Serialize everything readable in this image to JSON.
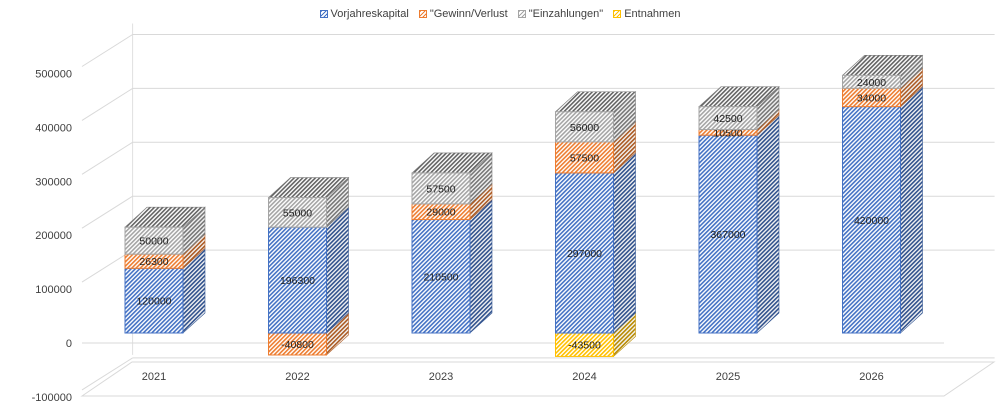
{
  "chart_data": {
    "type": "bar",
    "stacked": true,
    "three_d": true,
    "categories": [
      "2021",
      "2022",
      "2023",
      "2024",
      "2025",
      "2026"
    ],
    "series": [
      {
        "name": "Vorjahreskapital",
        "color": "#4472C4",
        "values": [
          120000,
          196300,
          210500,
          297000,
          367000,
          420000
        ]
      },
      {
        "name": "\"Gewinn/Verlust",
        "color": "#ED7D31",
        "values": [
          26300,
          -40800,
          29000,
          57500,
          10500,
          34000
        ]
      },
      {
        "name": "\"Einzahlungen\"",
        "color": "#A5A5A5",
        "values": [
          50000,
          55000,
          57500,
          56000,
          42500,
          24000
        ]
      },
      {
        "name": "Entnahmen",
        "color": "#FFC000",
        "values": [
          0,
          0,
          0,
          -43500,
          0,
          0
        ]
      }
    ],
    "y_ticks": [
      "-100000",
      "0",
      "100000",
      "200000",
      "300000",
      "400000",
      "500000"
    ],
    "ylim": [
      -100000,
      500000
    ],
    "legend_position": "top",
    "gridlines": true
  }
}
